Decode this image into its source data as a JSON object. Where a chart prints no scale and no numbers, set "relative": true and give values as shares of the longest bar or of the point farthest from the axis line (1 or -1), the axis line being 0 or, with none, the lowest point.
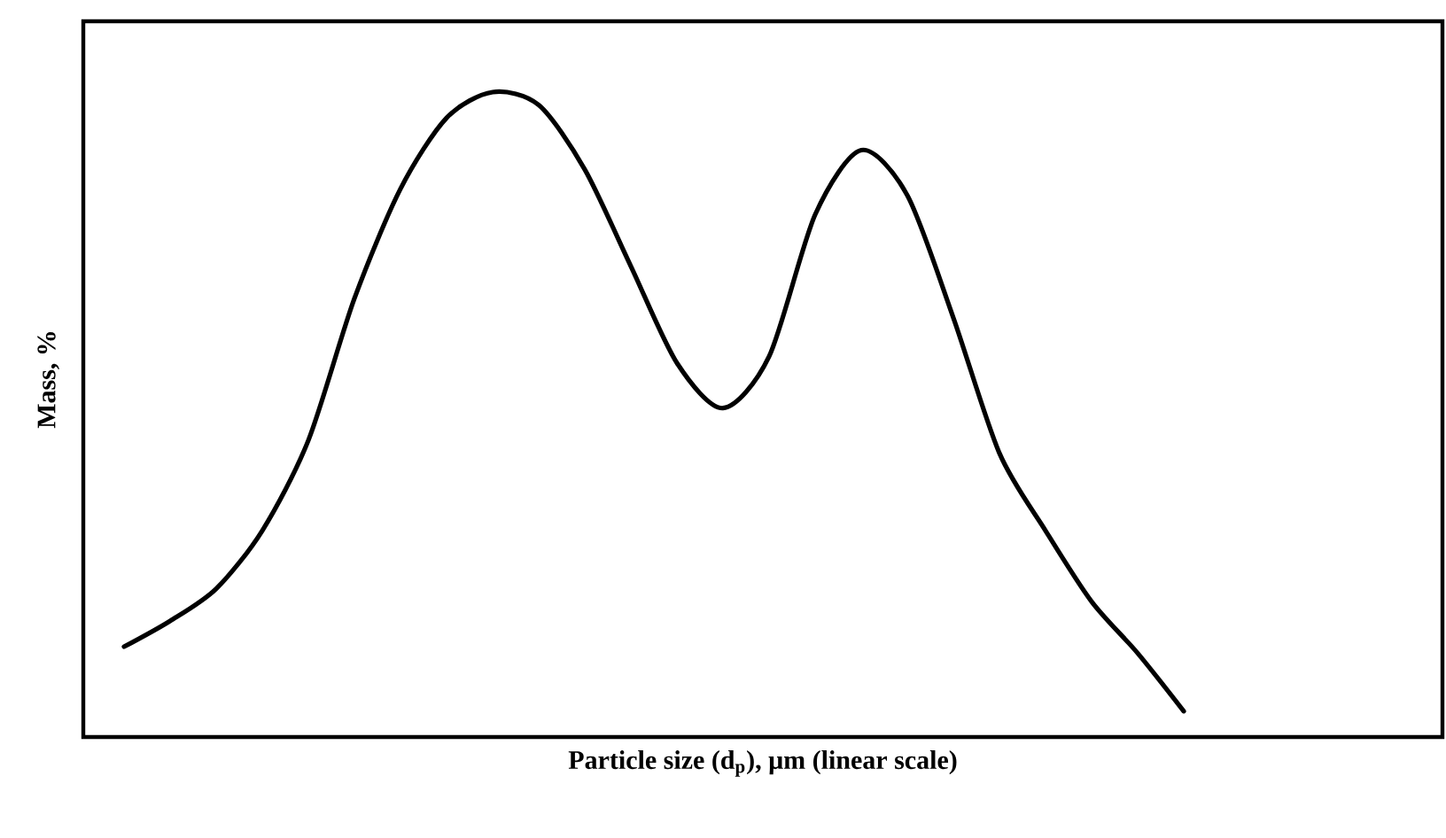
{
  "chart_data": {
    "type": "line",
    "relative": true,
    "xlabel": "Particle size (d$_{p}$), μm (linear scale)",
    "ylabel": "Mass, %",
    "categories": [
      null,
      null,
      null,
      null,
      null,
      null,
      null,
      null,
      null,
      null,
      null,
      null,
      null,
      null,
      null,
      null,
      null,
      null,
      null,
      null,
      null,
      null,
      null,
      null
    ],
    "series": [
      {
        "color": "#000000",
        "values": [
          0.14,
          0.18,
          0.23,
          0.32,
          0.46,
          0.68,
          0.85,
          0.96,
          1.0,
          0.98,
          0.88,
          0.73,
          0.58,
          0.51,
          0.59,
          0.81,
          0.91,
          0.84,
          0.65,
          0.44,
          0.32,
          0.21,
          0.13,
          0.04
        ]
      }
    ],
    "marker": "none",
    "line_style": "solid"
  }
}
